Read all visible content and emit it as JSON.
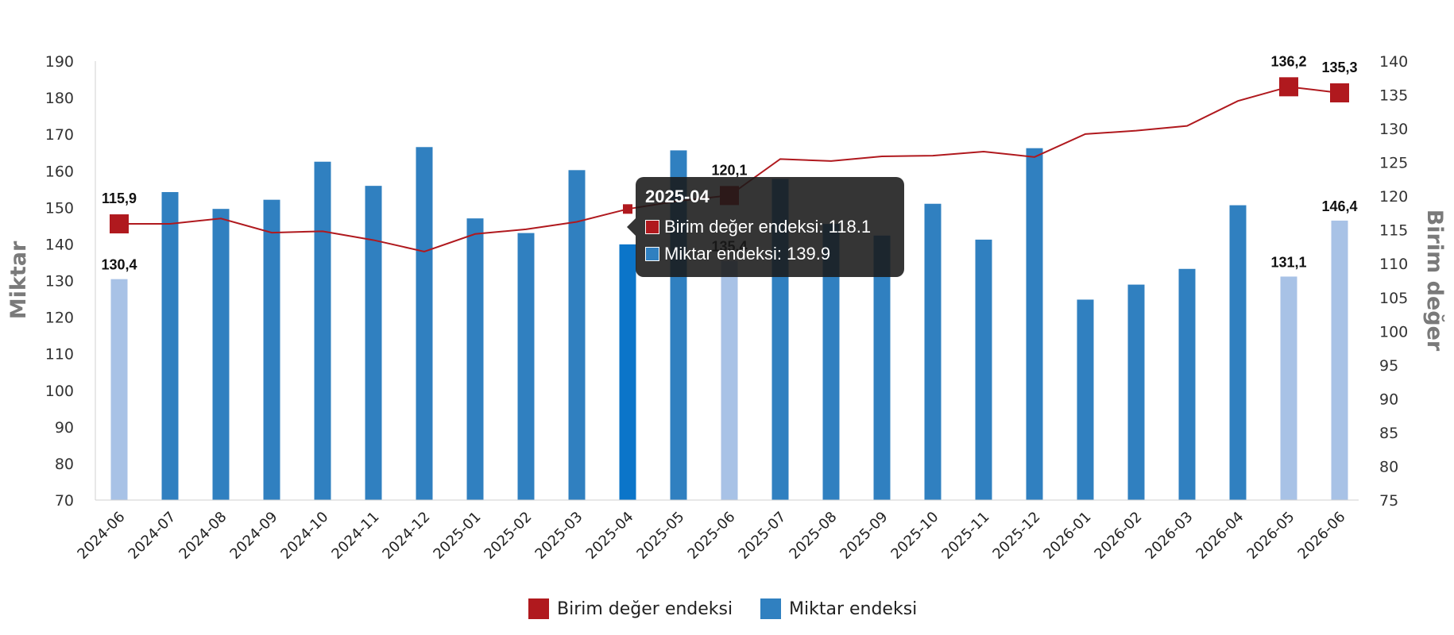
{
  "chart_data": {
    "type": "bar",
    "categories": [
      "2024-06",
      "2024-07",
      "2024-08",
      "2024-09",
      "2024-10",
      "2024-11",
      "2024-12",
      "2025-01",
      "2025-02",
      "2025-03",
      "2025-04",
      "2025-05",
      "2025-06",
      "2025-07",
      "2025-08",
      "2025-09",
      "2025-10",
      "2025-11",
      "2025-12",
      "2026-01",
      "2026-02",
      "2026-03",
      "2026-04",
      "2026-05",
      "2026-06"
    ],
    "series": [
      {
        "name": "Miktar endeksi",
        "type": "bar",
        "axis": "left",
        "color": "#3080c0",
        "light_color": "#a8c2e6",
        "highlight_color": "#0b75c9",
        "values": [
          130.4,
          154.2,
          149.6,
          152.1,
          162.5,
          155.9,
          166.5,
          147.0,
          143.0,
          160.2,
          139.9,
          165.6,
          135.4,
          157.8,
          145.5,
          142.3,
          151.0,
          141.2,
          166.2,
          124.8,
          128.9,
          133.2,
          150.6,
          131.1,
          146.4
        ]
      },
      {
        "name": "Birim değer endeksi",
        "type": "line",
        "axis": "right",
        "color": "#b0191e",
        "values": [
          115.9,
          115.9,
          116.7,
          114.6,
          114.8,
          113.5,
          111.8,
          114.4,
          115.1,
          116.2,
          118.1,
          119.3,
          120.1,
          125.5,
          125.2,
          125.9,
          126.0,
          126.6,
          125.8,
          129.2,
          129.7,
          130.4,
          134.1,
          136.2,
          135.3
        ]
      }
    ],
    "light_bar_indices": [
      0,
      12,
      23,
      24
    ],
    "highlight_bar_index": 10,
    "marker_indices": [
      0,
      12,
      23,
      24
    ],
    "bar_labels": [
      {
        "index": 0,
        "text": "130,4"
      },
      {
        "index": 12,
        "text": "135,4"
      },
      {
        "index": 23,
        "text": "131,1"
      },
      {
        "index": 24,
        "text": "146,4"
      }
    ],
    "line_labels": [
      {
        "index": 0,
        "text": "115,9"
      },
      {
        "index": 12,
        "text": "120,1"
      },
      {
        "index": 23,
        "text": "136,2"
      },
      {
        "index": 24,
        "text": "135,3"
      }
    ],
    "yaxis_left": {
      "title": "Miktar",
      "min": 70,
      "max": 190,
      "step": 10
    },
    "yaxis_right": {
      "title": "Birim değer",
      "min": 75,
      "max": 140,
      "step": 5
    },
    "legend": {
      "position": "bottom",
      "items": [
        {
          "label": "Birim değer endeksi",
          "color": "#b0191e"
        },
        {
          "label": "Miktar endeksi",
          "color": "#3080c0"
        }
      ]
    },
    "grid": false
  },
  "tooltip": {
    "title": "2025-04",
    "rows": [
      {
        "text": "Birim değer endeksi: 118.1",
        "color": "#b0191e"
      },
      {
        "text": "Miktar endeksi: 139.9",
        "color": "#3080c0"
      }
    ]
  }
}
